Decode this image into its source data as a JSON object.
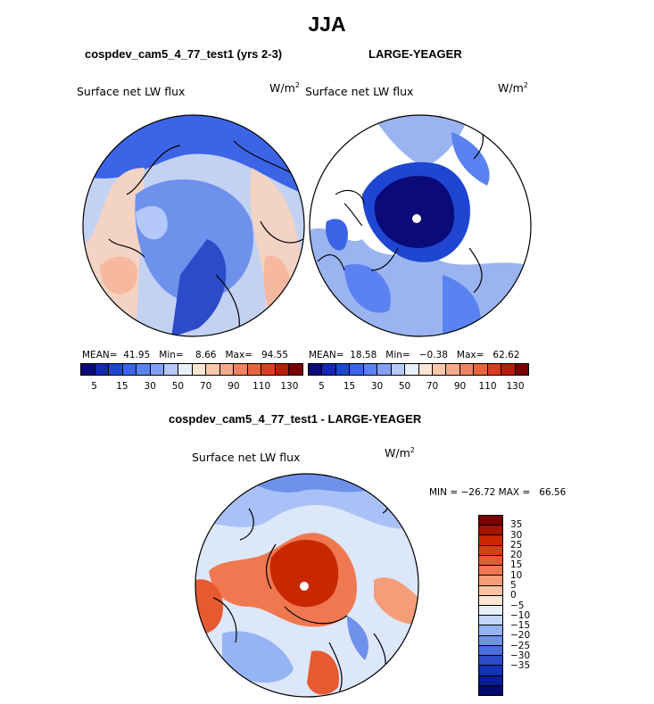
{
  "title": "JJA",
  "panels": [
    {
      "id": "model",
      "subtitle": "cospdev_cam5_4_77_test1 (yrs 2-3)",
      "field_label": "Surface net LW flux",
      "unit": "W/m",
      "unit_exp": "2",
      "stats": "MEAN=  41.95   Min=    8.66   Max=   94.55"
    },
    {
      "id": "obs",
      "subtitle": "LARGE-YEAGER",
      "field_label": "Surface net LW flux",
      "unit": "W/m",
      "unit_exp": "2",
      "stats": "MEAN=  18.58   Min=   −0.38   Max=   62.62"
    },
    {
      "id": "diff",
      "subtitle": "cospdev_cam5_4_77_test1 - LARGE-YEAGER",
      "field_label": "Surface net LW flux",
      "unit": "W/m",
      "unit_exp": "2",
      "stats": "MIN = −26.72 MAX =   66.56"
    }
  ],
  "colorbar_top": {
    "colors": [
      "#0a0a78",
      "#1428b4",
      "#1e46d2",
      "#3c64e6",
      "#5a82f0",
      "#82a0f5",
      "#b4c8fa",
      "#e6f0fa",
      "#fae6d2",
      "#fac8aa",
      "#f5aa8c",
      "#f08264",
      "#e6643c",
      "#dc3c1e",
      "#b41e0a",
      "#780000"
    ],
    "tick_labels": [
      "5",
      "15",
      "30",
      "50",
      "70",
      "90",
      "110",
      "130"
    ]
  },
  "colorbar_diff": {
    "colors": [
      "#780000",
      "#a01400",
      "#c82800",
      "#dc3c14",
      "#e65a32",
      "#f07850",
      "#f59c78",
      "#fac3a5",
      "#fae6d2",
      "#e6f0fa",
      "#c3d7fa",
      "#96b4f5",
      "#6e91eb",
      "#4b6edc",
      "#2d4bc8",
      "#1432b4",
      "#0a1e96",
      "#000a6e"
    ],
    "tick_labels": [
      "35",
      "30",
      "25",
      "20",
      "15",
      "10",
      "5",
      "0",
      "−5",
      "−10",
      "−15",
      "−20",
      "−25",
      "−30",
      "−35"
    ]
  }
}
